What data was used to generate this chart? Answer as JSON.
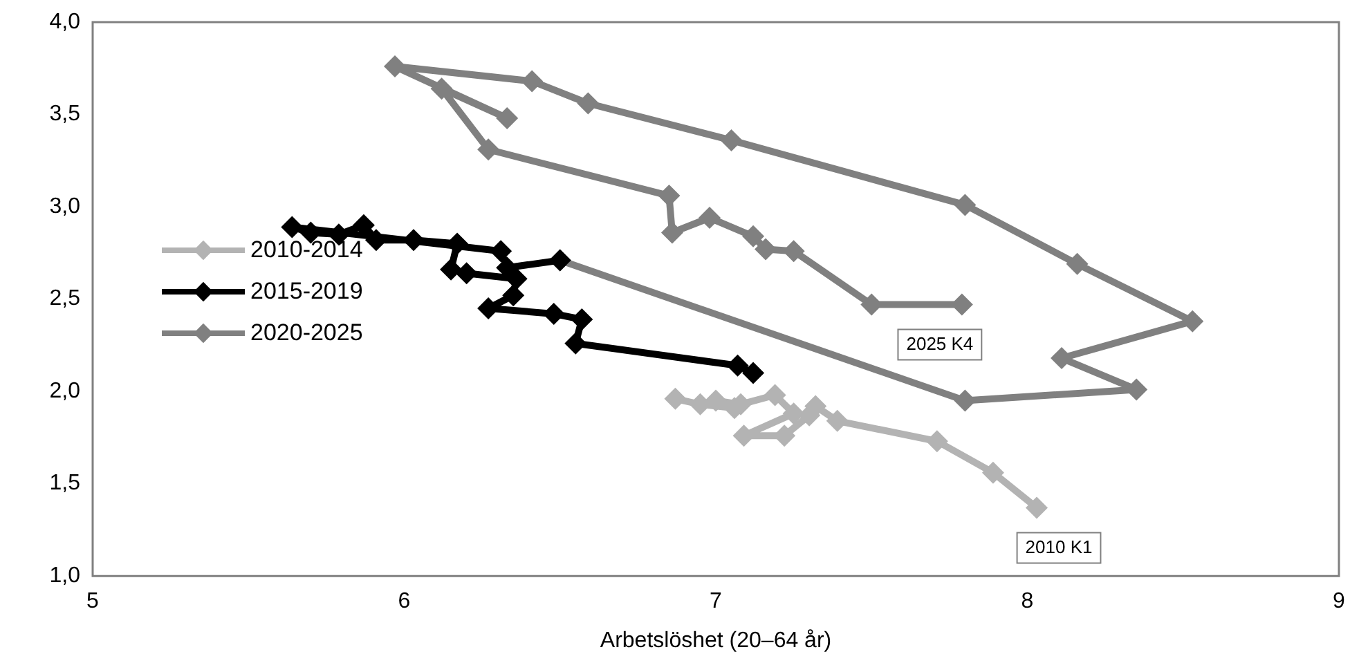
{
  "chart_data": {
    "type": "line",
    "xlabel": "Arbetslöshet (20–64 år)",
    "xlim": [
      5,
      9
    ],
    "xticks": [
      5,
      6,
      7,
      8,
      9
    ],
    "ylim": [
      1,
      4
    ],
    "yticks": [
      {
        "value": 1,
        "label": "1,0"
      },
      {
        "value": 1.5,
        "label": "1,5"
      },
      {
        "value": 2,
        "label": "2,0"
      },
      {
        "value": 2.5,
        "label": "2,5"
      },
      {
        "value": 3,
        "label": "3,0"
      },
      {
        "value": 3.5,
        "label": "3,5"
      },
      {
        "value": 4,
        "label": "4,0"
      }
    ],
    "grid": false,
    "legend": "left",
    "marker": "diamond",
    "line_style": "solid",
    "series": [
      {
        "name": "2010-2014",
        "color": "#b3b3b3",
        "x": [
          8.03,
          7.89,
          7.71,
          7.39,
          7.32,
          7.3,
          7.22,
          7.09,
          7.25,
          7.19,
          7.08,
          7.0,
          7.06,
          6.95,
          6.87
        ],
        "values": [
          1.37,
          1.56,
          1.73,
          1.84,
          1.92,
          1.87,
          1.76,
          1.76,
          1.88,
          1.98,
          1.93,
          1.95,
          1.91,
          1.93,
          1.96
        ]
      },
      {
        "name": "2015-2019",
        "color": "#000000",
        "x": [
          7.12,
          7.07,
          6.55,
          6.57,
          6.48,
          6.27,
          6.35,
          6.36,
          6.2,
          6.15,
          6.17,
          6.03,
          5.91,
          5.87,
          5.79,
          5.7,
          5.64,
          6.31,
          6.33,
          6.5
        ],
        "values": [
          2.1,
          2.14,
          2.26,
          2.39,
          2.42,
          2.45,
          2.52,
          2.61,
          2.64,
          2.66,
          2.8,
          2.82,
          2.82,
          2.9,
          2.85,
          2.86,
          2.89,
          2.76,
          2.67,
          2.71
        ]
      },
      {
        "name": "2020-2025",
        "color": "#808080",
        "x": [
          6.5,
          7.8,
          8.35,
          8.11,
          8.53,
          8.16,
          7.8,
          7.05,
          6.59,
          6.41,
          5.97,
          6.33,
          6.12,
          6.27,
          6.85,
          6.86,
          6.98,
          7.12,
          7.16,
          7.25,
          7.5,
          7.79
        ],
        "values": [
          2.71,
          1.95,
          2.01,
          2.18,
          2.38,
          2.69,
          3.01,
          3.36,
          3.56,
          3.68,
          3.76,
          3.48,
          3.64,
          3.31,
          3.06,
          2.86,
          2.94,
          2.84,
          2.77,
          2.76,
          2.47,
          2.47
        ]
      }
    ],
    "annotations": [
      {
        "text": "2025 K4",
        "x": 7.79,
        "y": 2.47
      },
      {
        "text": "2010 K1",
        "x": 8.03,
        "y": 1.37
      }
    ]
  }
}
